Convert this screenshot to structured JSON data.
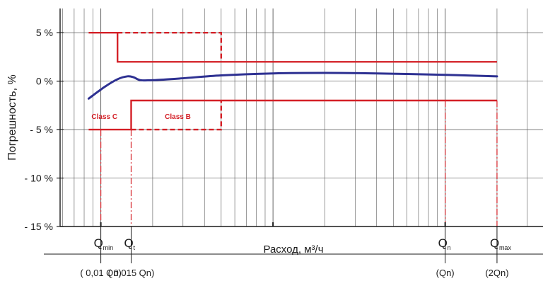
{
  "chart_data": {
    "type": "line",
    "ylabel": "Погрешность, %",
    "xlabel": "Расход, м³/ч",
    "ylim": [
      -15,
      7.5
    ],
    "yticks": [
      {
        "value": 5,
        "label": "5 %"
      },
      {
        "value": 0,
        "label": "0 %"
      },
      {
        "value": -5,
        "label": "- 5 %"
      },
      {
        "value": -10,
        "label": "- 10 %"
      },
      {
        "value": -15,
        "label": "- 15 %"
      }
    ],
    "x_scale": "log",
    "grid": true,
    "flow_points": [
      {
        "id": "qmin",
        "label": "Q",
        "sub": "min",
        "note": "( 0,01 Qn)",
        "x": 0.01
      },
      {
        "id": "qt",
        "label": "Q",
        "sub": "t",
        "note": "( 0,015 Qn)",
        "x": 0.015
      },
      {
        "id": "qn",
        "label": "Q",
        "sub": "n",
        "note": "(Qn)",
        "x": 1
      },
      {
        "id": "qmax",
        "label": "Q",
        "sub": "max",
        "note": "(2Qn)",
        "x": 2
      }
    ],
    "annotations": [
      {
        "id": "class-c",
        "text": "Class C"
      },
      {
        "id": "class-b",
        "text": "Class B"
      }
    ],
    "series": [
      {
        "color": "#2e3192",
        "x": [
          0.0085,
          0.0105,
          0.0125,
          0.0143,
          0.0155,
          0.017,
          0.02,
          0.03,
          0.05,
          0.1,
          0.2,
          0.4,
          1,
          2
        ],
        "values": [
          -1.8,
          -0.6,
          0.2,
          0.5,
          0.4,
          0.1,
          0.1,
          0.3,
          0.6,
          0.8,
          0.85,
          0.8,
          0.65,
          0.5
        ]
      }
    ],
    "limits": [
      {
        "name": "Class C upper",
        "color": "#d42027",
        "style": "solid",
        "x": [
          0.0085,
          0.0125,
          0.0125,
          2
        ],
        "values": [
          5,
          5,
          2,
          2
        ]
      },
      {
        "name": "Class C lower",
        "color": "#d42027",
        "style": "solid",
        "x": [
          0.0085,
          0.015,
          0.015,
          2
        ],
        "values": [
          -5,
          -5,
          -2,
          -2
        ]
      },
      {
        "name": "Class B upper",
        "color": "#d42027",
        "style": "dashed",
        "x": [
          0.0125,
          0.05,
          0.05
        ],
        "values": [
          5,
          5,
          2
        ]
      },
      {
        "name": "Class B lower",
        "color": "#d42027",
        "style": "dashed",
        "x": [
          0.015,
          0.05,
          0.05
        ],
        "values": [
          -5,
          -5,
          -2
        ]
      }
    ]
  },
  "colors": {
    "axis": "#1a1a1a",
    "grid": "#555555",
    "limit": "#d42027",
    "curve": "#2e3192"
  }
}
